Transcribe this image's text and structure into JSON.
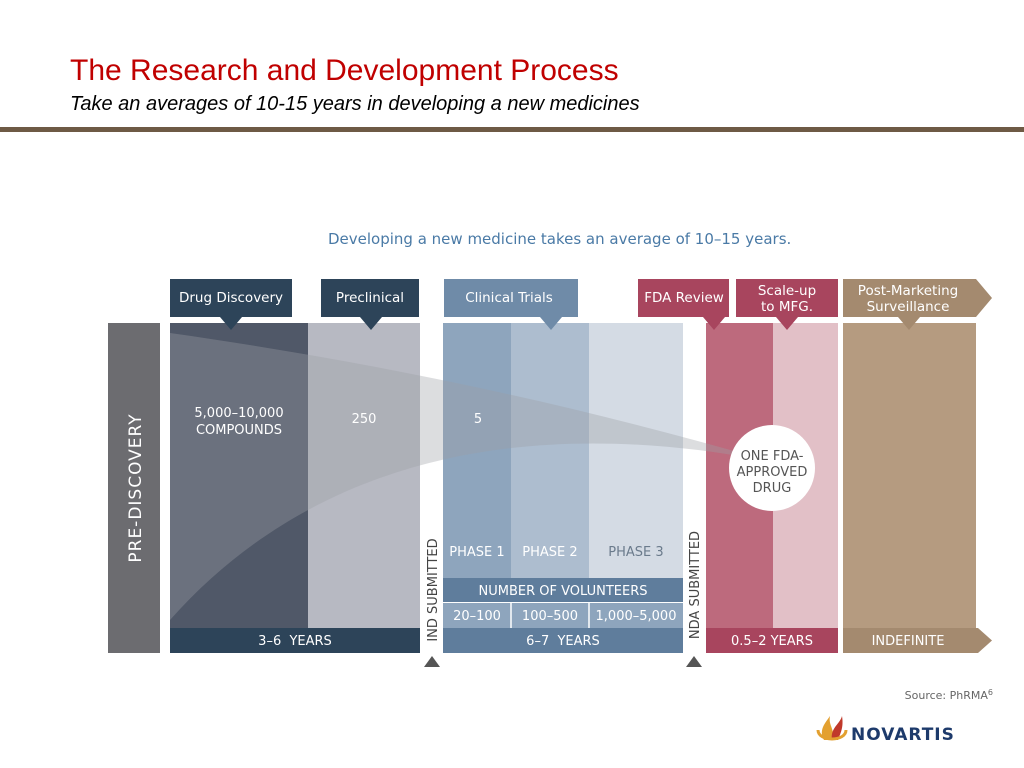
{
  "slide": {
    "title": "The Research and Development Process",
    "subtitle": "Take an averages of 10-15 years in developing a new medicines"
  },
  "diagram": {
    "caption": "Developing a new medicine takes an average of 10–15 years.",
    "pre_discovery_label": "PRE-DISCOVERY",
    "stages": [
      {
        "label": "Drug Discovery"
      },
      {
        "label": "Preclinical"
      },
      {
        "label": "Clinical Trials"
      },
      {
        "label": "FDA Review"
      },
      {
        "label_line1": "Scale-up",
        "label_line2": "to MFG."
      },
      {
        "label_line1": "Post-Marketing",
        "label_line2": "Surveillance"
      }
    ],
    "compounds_line1": "5,000–10,000",
    "compounds_line2": "COMPOUNDS",
    "preclinical_count": "250",
    "clinical_count": "5",
    "approved_line1": "ONE FDA-",
    "approved_line2": "APPROVED",
    "approved_line3": "DRUG",
    "phases": [
      "PHASE 1",
      "PHASE 2",
      "PHASE 3"
    ],
    "volunteers_header": "NUMBER OF VOLUNTEERS",
    "volunteers": [
      "20–100",
      "100–500",
      "1,000–5,000"
    ],
    "ind_submitted": "IND SUBMITTED",
    "nda_submitted": "NDA SUBMITTED",
    "durations": [
      "3–6  YEARS",
      "6–7  YEARS",
      "0.5–2 YEARS",
      "INDEFINITE"
    ],
    "source_text": "Source: PhRMA",
    "source_superscript": "6"
  },
  "logo": {
    "text": "NOVARTIS"
  },
  "colors": {
    "title_red": "#c00000",
    "rule_brown": "#6e5a45",
    "drug_discovery_navy": "#2d4459",
    "clinical_blue": "#6f8ba8",
    "fda_review_red": "#a8455e",
    "post_marketing_tan": "#a48a6f",
    "pre_discovery_gray": "#6c6c70"
  }
}
